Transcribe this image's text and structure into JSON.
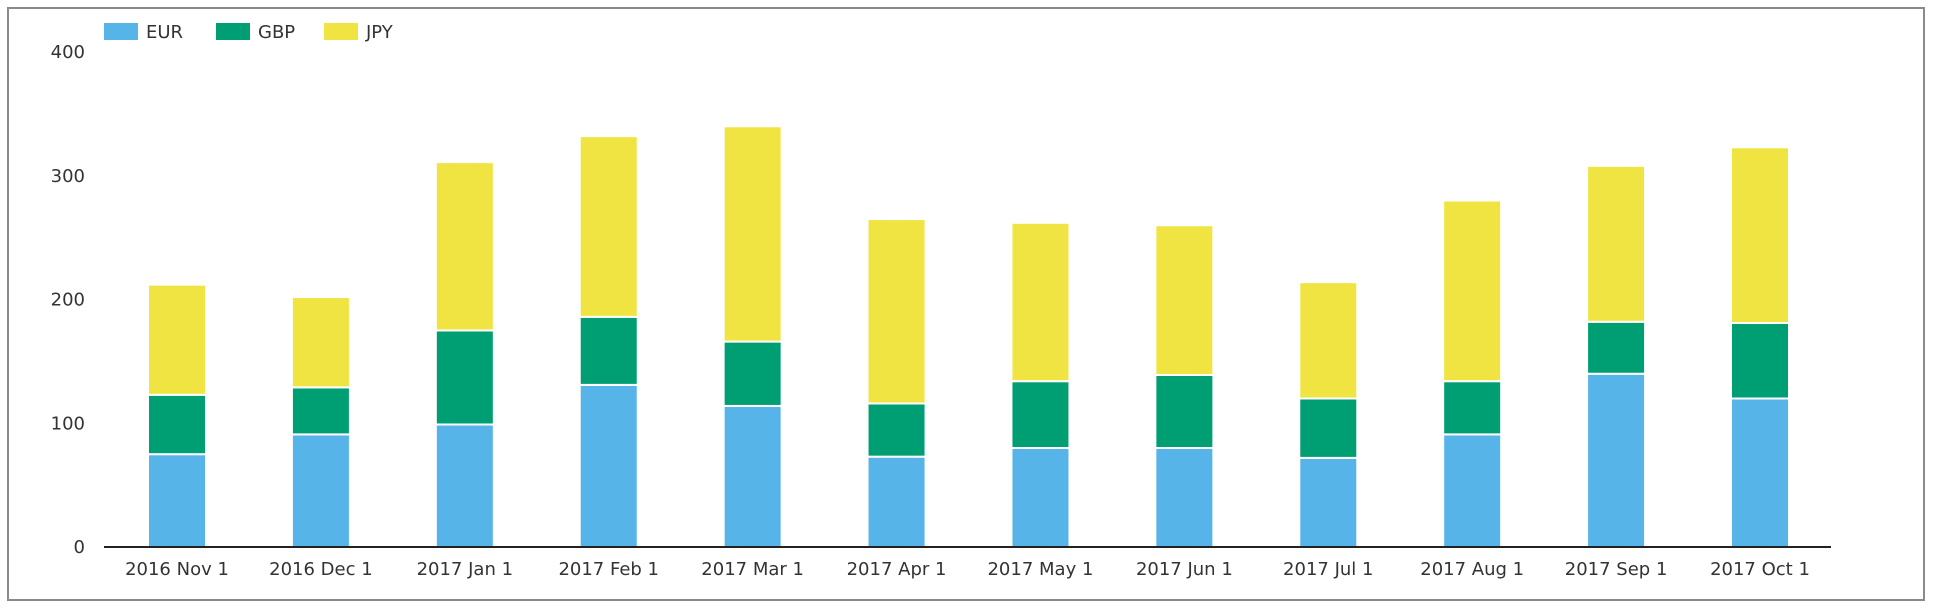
{
  "chart_data": {
    "type": "bar",
    "stacked": true,
    "title": "",
    "xlabel": "",
    "ylabel": "",
    "ylim": [
      0,
      400
    ],
    "yticks": [
      0,
      100,
      200,
      300,
      400
    ],
    "grid": false,
    "legend_position": "top-left",
    "categories": [
      "2016 Nov 1",
      "2016 Dec 1",
      "2017 Jan 1",
      "2017 Feb 1",
      "2017 Mar 1",
      "2017 Apr 1",
      "2017 May 1",
      "2017 Jun 1",
      "2017 Jul 1",
      "2017 Aug 1",
      "2017 Sep 1",
      "2017 Oct 1"
    ],
    "series": [
      {
        "name": "EUR",
        "color": "#56b4e9",
        "values": [
          75,
          91,
          99,
          131,
          114,
          73,
          80,
          80,
          72,
          91,
          140,
          120
        ]
      },
      {
        "name": "GBP",
        "color": "#009e73",
        "values": [
          48,
          38,
          76,
          55,
          52,
          43,
          54,
          59,
          48,
          43,
          42,
          61
        ]
      },
      {
        "name": "JPY",
        "color": "#f0e442",
        "values": [
          89,
          73,
          136,
          146,
          174,
          149,
          128,
          121,
          94,
          146,
          126,
          142
        ]
      }
    ]
  }
}
